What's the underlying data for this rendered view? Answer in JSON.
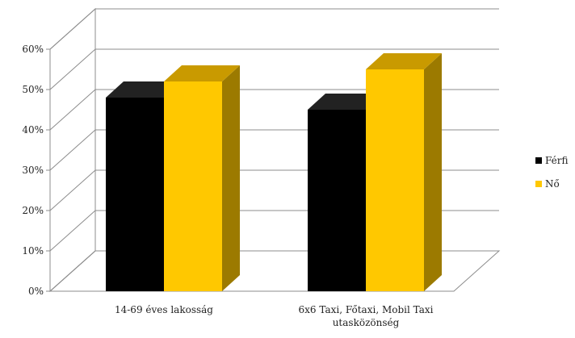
{
  "chart_data": {
    "type": "bar",
    "style": "3d-clustered",
    "categories": [
      "14-69 éves lakosság",
      "6x6 Taxi, Főtaxi, Mobil Taxi utasközönség"
    ],
    "category_lines": [
      [
        "14-69 éves lakosság"
      ],
      [
        "6x6 Taxi, Főtaxi, Mobil Taxi",
        "utasközönség"
      ]
    ],
    "series": [
      {
        "name": "Férfi",
        "values": [
          48,
          45
        ],
        "color": "#000000",
        "top_color": "#222222",
        "side_color": "#111111"
      },
      {
        "name": "Nő",
        "values": [
          52,
          55
        ],
        "color": "#FFC800",
        "top_color": "#C99A00",
        "side_color": "#9C7A00"
      }
    ],
    "ylim": [
      0,
      60
    ],
    "yticks": [
      "0%",
      "10%",
      "20%",
      "30%",
      "40%",
      "50%",
      "60%"
    ],
    "grid": true,
    "legend_position": "right",
    "title": "",
    "xlabel": "",
    "ylabel": ""
  }
}
